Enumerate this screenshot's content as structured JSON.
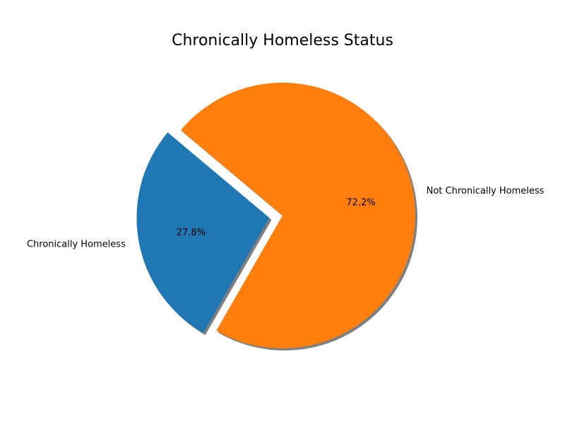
{
  "chart_data": {
    "type": "pie",
    "title": "Chronically Homeless Status",
    "slices": [
      {
        "label": "Chronically Homeless",
        "value": 27.8,
        "pct_label": "27.8%",
        "color": "#1f77b4",
        "exploded": true
      },
      {
        "label": "Not Chronically Homeless",
        "value": 72.2,
        "pct_label": "72.2%",
        "color": "#ff7f0e",
        "exploded": false
      }
    ],
    "shadow": true,
    "start_angle_deg": 140,
    "direction": "counterclockwise"
  }
}
